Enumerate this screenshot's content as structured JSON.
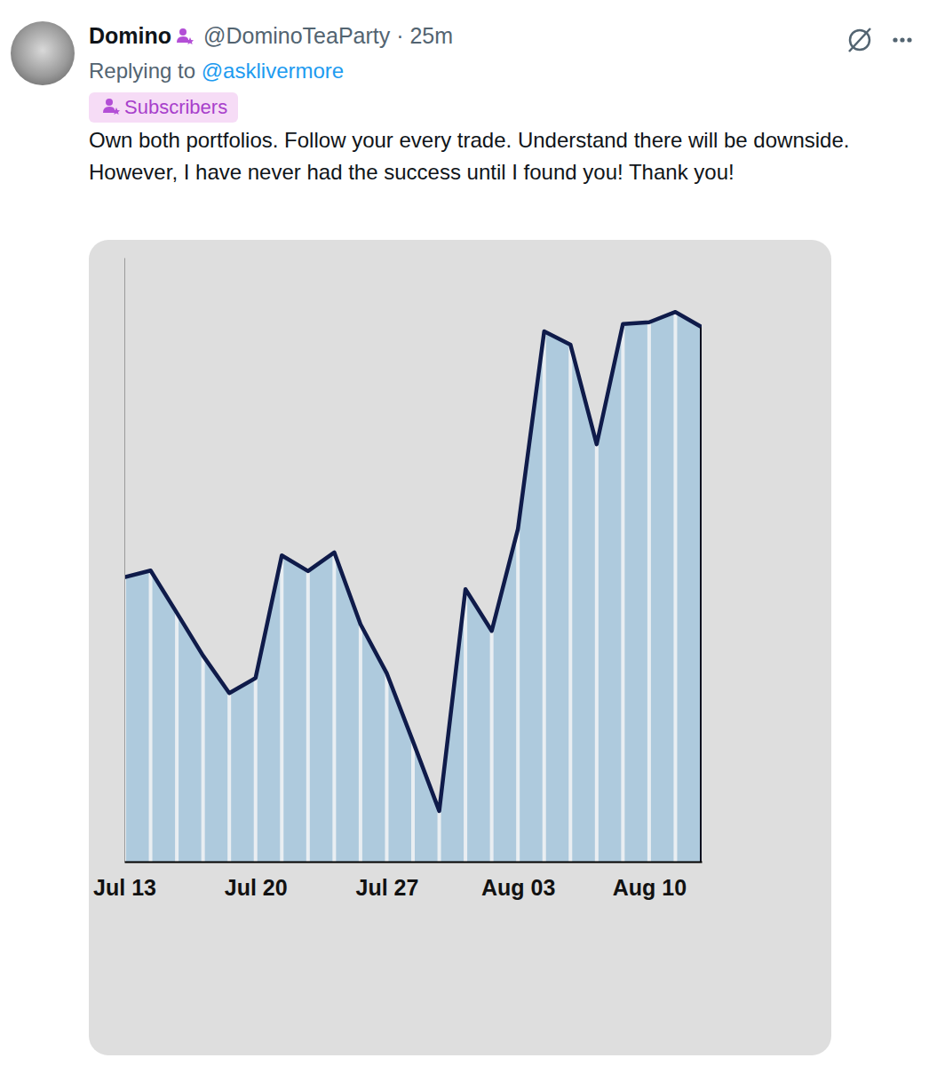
{
  "post": {
    "display_name": "Domino",
    "meta": "@DominoTeaParty · 25m",
    "reply_prefix": "Replying to",
    "replying_to": "@asklivermore",
    "badge": "Subscribers",
    "text": "Own both portfolios. Follow your every trade. Understand there will be downside. However, I have never had the success until I found you! Thank you!"
  },
  "chart_data": {
    "type": "area",
    "categories": [
      "Jul 13",
      null,
      null,
      null,
      null,
      "Jul 20",
      null,
      null,
      null,
      null,
      "Jul 27",
      null,
      null,
      null,
      null,
      "Aug 03",
      null,
      null,
      null,
      null,
      "Aug 10",
      null,
      null
    ],
    "values": [
      47.1,
      48.2,
      41.2,
      34.1,
      27.9,
      30.4,
      50.7,
      48.1,
      51.2,
      39.3,
      31.2,
      19.9,
      8.4,
      45.1,
      38.2,
      55.1,
      87.8,
      85.6,
      69.1,
      89.0,
      89.3,
      91.0,
      88.5
    ],
    "color": "#0f1b4a",
    "ylim": [
      0,
      100
    ],
    "tick_labels": "x"
  }
}
